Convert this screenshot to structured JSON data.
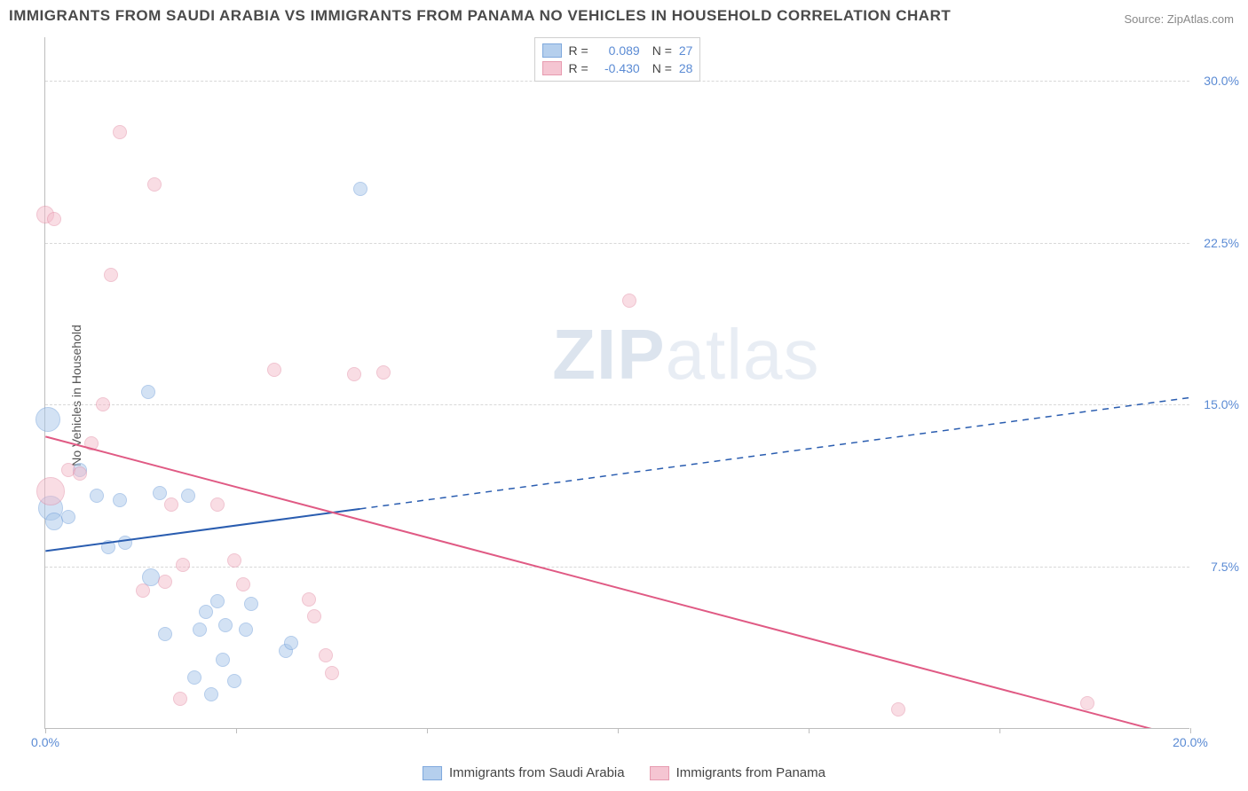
{
  "title": "IMMIGRANTS FROM SAUDI ARABIA VS IMMIGRANTS FROM PANAMA NO VEHICLES IN HOUSEHOLD CORRELATION CHART",
  "source_label": "Source: ",
  "source_name": "ZipAtlas.com",
  "ylabel": "No Vehicles in Household",
  "watermark_bold": "ZIP",
  "watermark_light": "atlas",
  "chart": {
    "type": "scatter",
    "background_color": "#ffffff",
    "grid_color": "#d8d8d8",
    "axis_color": "#bdbdbd",
    "tick_label_color": "#5b8bd4",
    "xlim": [
      0.0,
      20.0
    ],
    "ylim": [
      0.0,
      32.0
    ],
    "x_ticks": [
      0.0,
      3.33,
      6.67,
      10.0,
      13.33,
      16.67,
      20.0
    ],
    "x_tick_labels": [
      "0.0%",
      "",
      "",
      "",
      "",
      "",
      "20.0%"
    ],
    "y_ticks": [
      7.5,
      15.0,
      22.5,
      30.0
    ],
    "y_tick_labels": [
      "7.5%",
      "15.0%",
      "22.5%",
      "30.0%"
    ],
    "series": [
      {
        "name": "Immigrants from Saudi Arabia",
        "fill_color": "#a9c7ea",
        "stroke_color": "#6a9bd8",
        "fill_opacity": 0.5,
        "trend_color": "#2a5db0",
        "trend_solid_xmax": 5.5,
        "trend": {
          "y_at_x0": 8.2,
          "y_at_xmax": 15.3
        },
        "R": "0.089",
        "N": "27",
        "points": [
          {
            "x": 0.05,
            "y": 14.3,
            "r": 14
          },
          {
            "x": 0.1,
            "y": 10.2,
            "r": 14
          },
          {
            "x": 0.15,
            "y": 9.6,
            "r": 10
          },
          {
            "x": 0.4,
            "y": 9.8,
            "r": 8
          },
          {
            "x": 0.6,
            "y": 12.0,
            "r": 8
          },
          {
            "x": 0.9,
            "y": 10.8,
            "r": 8
          },
          {
            "x": 1.1,
            "y": 8.4,
            "r": 8
          },
          {
            "x": 1.3,
            "y": 10.6,
            "r": 8
          },
          {
            "x": 1.4,
            "y": 8.6,
            "r": 8
          },
          {
            "x": 1.8,
            "y": 15.6,
            "r": 8
          },
          {
            "x": 1.85,
            "y": 7.0,
            "r": 10
          },
          {
            "x": 2.0,
            "y": 10.9,
            "r": 8
          },
          {
            "x": 2.1,
            "y": 4.4,
            "r": 8
          },
          {
            "x": 2.5,
            "y": 10.8,
            "r": 8
          },
          {
            "x": 2.6,
            "y": 2.4,
            "r": 8
          },
          {
            "x": 2.7,
            "y": 4.6,
            "r": 8
          },
          {
            "x": 2.8,
            "y": 5.4,
            "r": 8
          },
          {
            "x": 2.9,
            "y": 1.6,
            "r": 8
          },
          {
            "x": 3.0,
            "y": 5.9,
            "r": 8
          },
          {
            "x": 3.1,
            "y": 3.2,
            "r": 8
          },
          {
            "x": 3.15,
            "y": 4.8,
            "r": 8
          },
          {
            "x": 3.3,
            "y": 2.2,
            "r": 8
          },
          {
            "x": 3.5,
            "y": 4.6,
            "r": 8
          },
          {
            "x": 3.6,
            "y": 5.8,
            "r": 8
          },
          {
            "x": 4.2,
            "y": 3.6,
            "r": 8
          },
          {
            "x": 4.3,
            "y": 4.0,
            "r": 8
          },
          {
            "x": 5.5,
            "y": 25.0,
            "r": 8
          }
        ]
      },
      {
        "name": "Immigrants from Panama",
        "fill_color": "#f4bccb",
        "stroke_color": "#e38aa3",
        "fill_opacity": 0.5,
        "trend_color": "#e05a84",
        "trend_solid_xmax": 20.0,
        "trend": {
          "y_at_x0": 13.5,
          "y_at_xmax": -0.5
        },
        "R": "-0.430",
        "N": "28",
        "points": [
          {
            "x": 0.0,
            "y": 23.8,
            "r": 10
          },
          {
            "x": 0.15,
            "y": 23.6,
            "r": 8
          },
          {
            "x": 0.1,
            "y": 11.0,
            "r": 16
          },
          {
            "x": 0.4,
            "y": 12.0,
            "r": 8
          },
          {
            "x": 0.6,
            "y": 11.8,
            "r": 8
          },
          {
            "x": 0.8,
            "y": 13.2,
            "r": 8
          },
          {
            "x": 1.0,
            "y": 15.0,
            "r": 8
          },
          {
            "x": 1.15,
            "y": 21.0,
            "r": 8
          },
          {
            "x": 1.3,
            "y": 27.6,
            "r": 8
          },
          {
            "x": 1.7,
            "y": 6.4,
            "r": 8
          },
          {
            "x": 1.9,
            "y": 25.2,
            "r": 8
          },
          {
            "x": 2.1,
            "y": 6.8,
            "r": 8
          },
          {
            "x": 2.2,
            "y": 10.4,
            "r": 8
          },
          {
            "x": 2.35,
            "y": 1.4,
            "r": 8
          },
          {
            "x": 2.4,
            "y": 7.6,
            "r": 8
          },
          {
            "x": 3.0,
            "y": 10.4,
            "r": 8
          },
          {
            "x": 3.3,
            "y": 7.8,
            "r": 8
          },
          {
            "x": 3.45,
            "y": 6.7,
            "r": 8
          },
          {
            "x": 4.0,
            "y": 16.6,
            "r": 8
          },
          {
            "x": 4.6,
            "y": 6.0,
            "r": 8
          },
          {
            "x": 4.7,
            "y": 5.2,
            "r": 8
          },
          {
            "x": 4.9,
            "y": 3.4,
            "r": 8
          },
          {
            "x": 5.0,
            "y": 2.6,
            "r": 8
          },
          {
            "x": 5.4,
            "y": 16.4,
            "r": 8
          },
          {
            "x": 5.9,
            "y": 16.5,
            "r": 8
          },
          {
            "x": 10.2,
            "y": 19.8,
            "r": 8
          },
          {
            "x": 14.9,
            "y": 0.9,
            "r": 8
          },
          {
            "x": 18.2,
            "y": 1.2,
            "r": 8
          }
        ]
      }
    ]
  },
  "legend_top": {
    "r_label": "R =",
    "n_label": "N ="
  }
}
